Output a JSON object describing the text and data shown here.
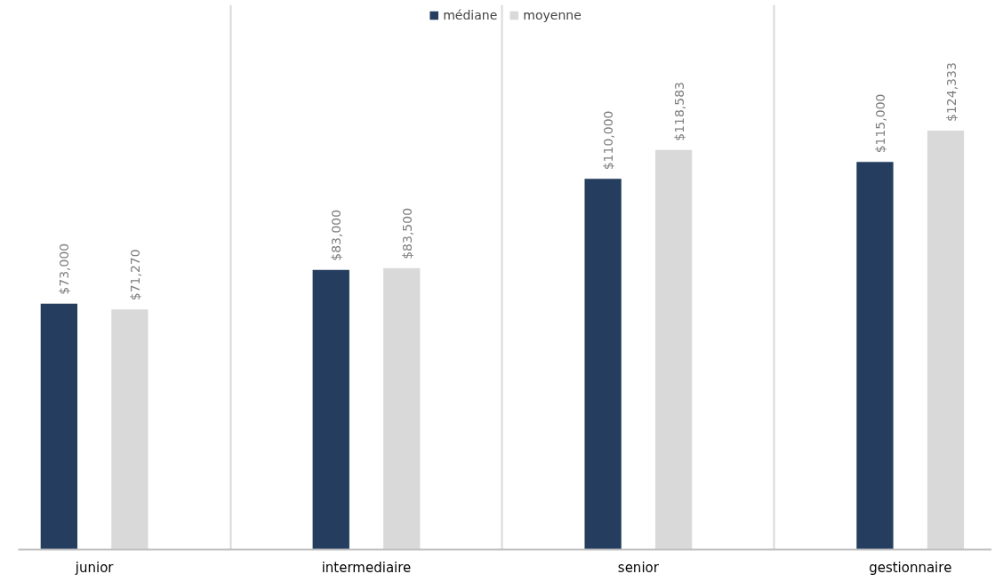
{
  "chart_data": {
    "type": "bar",
    "categories": [
      "junior",
      "intermediaire",
      "senior",
      "gestionnaire"
    ],
    "series": [
      {
        "name": "médiane",
        "color": "#253d5e",
        "values": [
          73000,
          83000,
          110000,
          115000
        ],
        "value_labels": [
          "$73,000",
          "$83,000",
          "$110,000",
          "$115,000"
        ]
      },
      {
        "name": "moyenne",
        "color": "#d9d9d9",
        "values": [
          71270,
          83500,
          118583,
          124333
        ],
        "value_labels": [
          "$71,270",
          "$83,500",
          "$118,583",
          "$124,333"
        ]
      }
    ],
    "grid": "x",
    "legend": "top"
  }
}
